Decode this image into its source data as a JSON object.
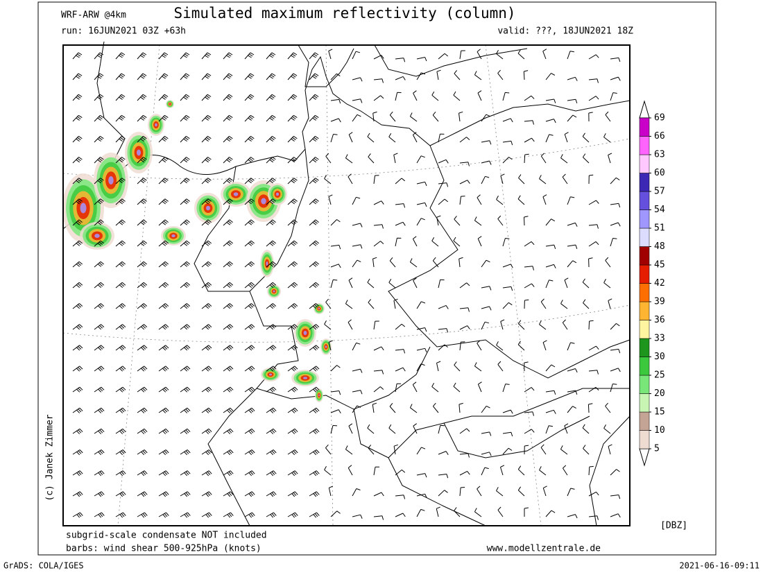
{
  "header": {
    "model": "WRF-ARW @4km",
    "title": "Simulated maximum reflectivity (column)",
    "run": "run: 16JUN2021 03Z +63h",
    "valid": "valid: ???, 18JUN2021 18Z"
  },
  "credit": "(c) Janek Zimmer",
  "notes": [
    "subgrid-scale condensate NOT included",
    "barbs: wind shear 500-925hPa (knots)"
  ],
  "website": "www.modellzentrale.de",
  "legend": {
    "unit": "[DBZ]",
    "ticks": [
      5,
      10,
      15,
      20,
      25,
      30,
      33,
      36,
      39,
      42,
      45,
      48,
      51,
      54,
      57,
      60,
      63,
      66,
      69
    ],
    "colors": [
      "#eedcd2",
      "#c4a494",
      "#c8f5b4",
      "#78e678",
      "#3cc83c",
      "#1e961e",
      "#fff5a0",
      "#ffb432",
      "#ff6e00",
      "#e61e00",
      "#a00000",
      "#dcdcff",
      "#a096ff",
      "#6450dc",
      "#3c28b4",
      "#ffc8ff",
      "#ff64ff",
      "#c800c8"
    ]
  },
  "footer": {
    "software": "GrADS: COLA/IGES",
    "timestamp": "2021-06-16-09:11"
  }
}
